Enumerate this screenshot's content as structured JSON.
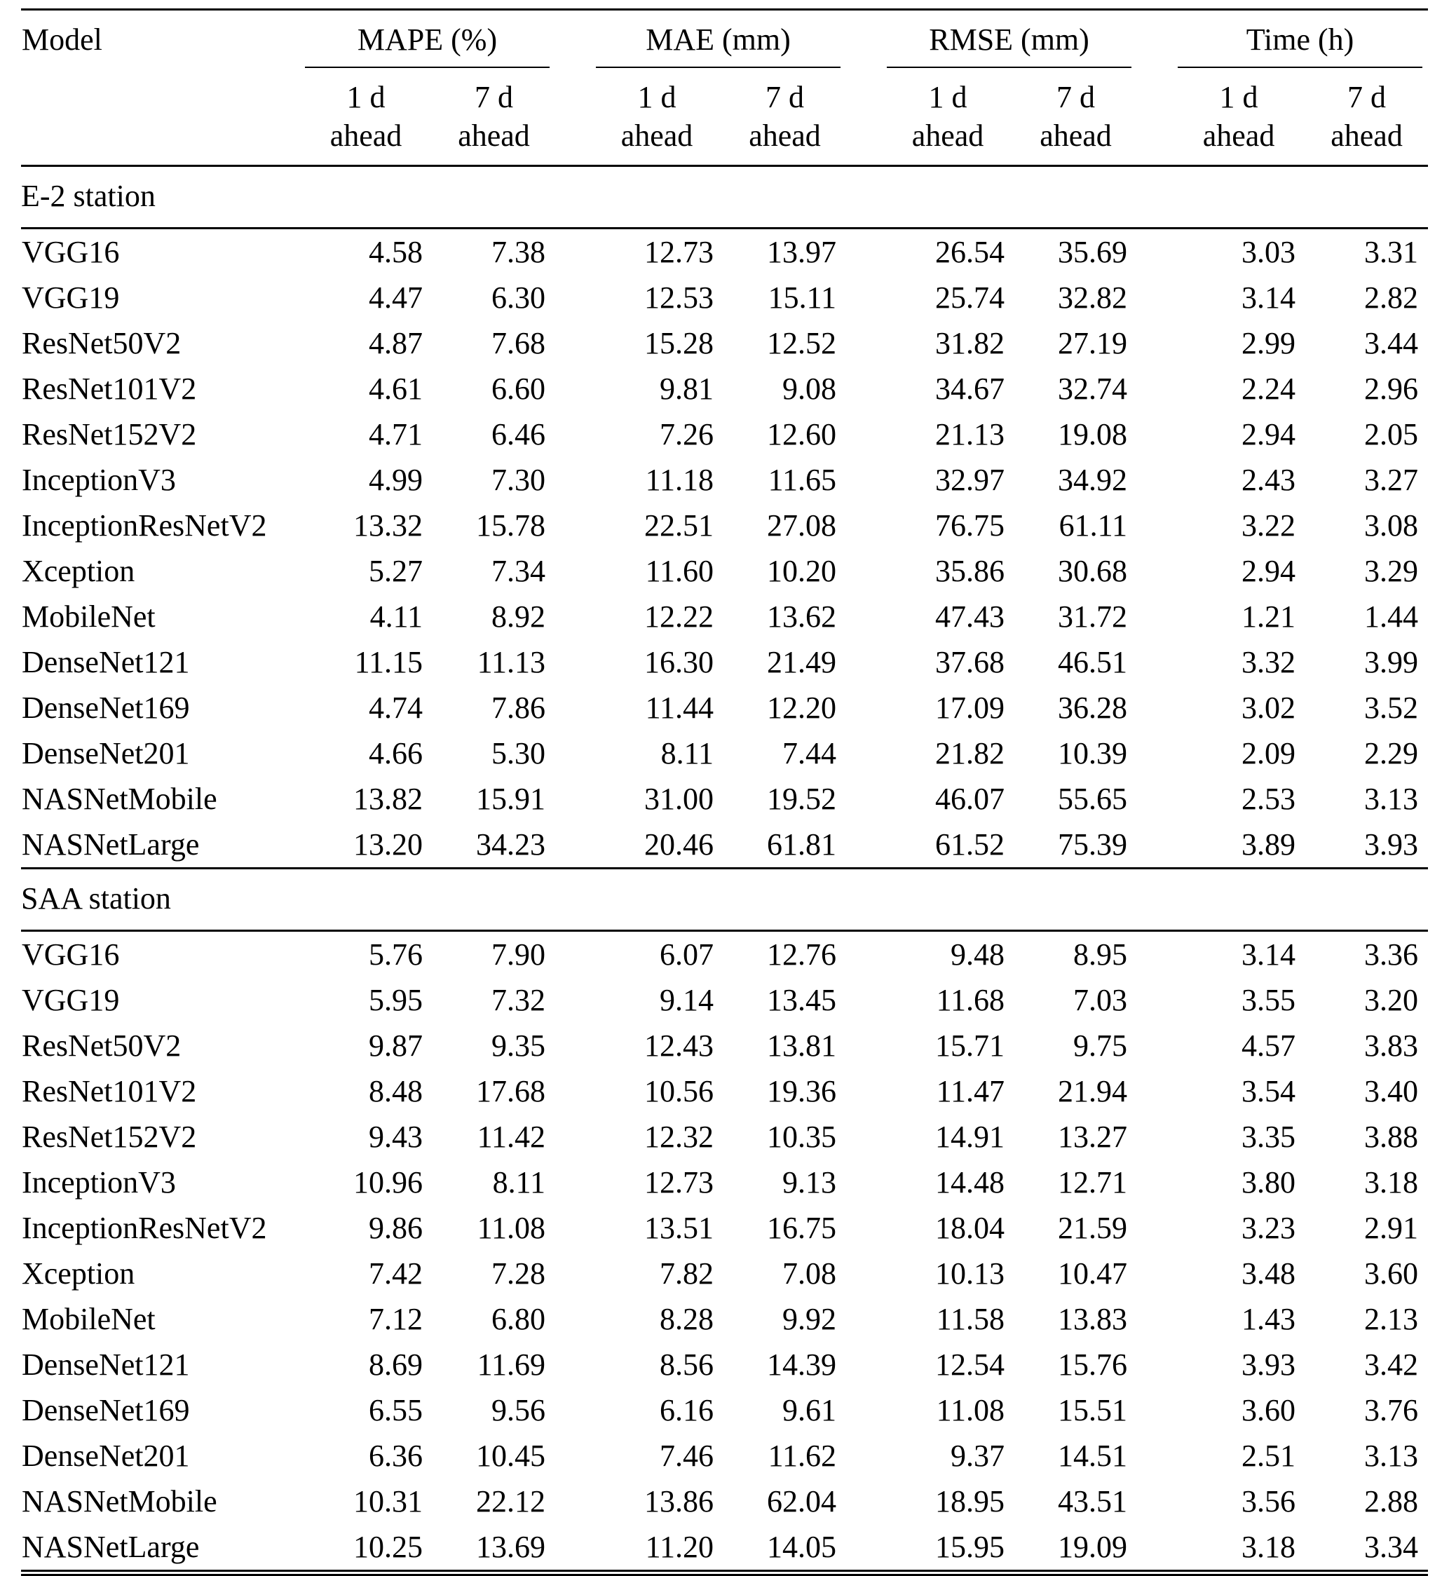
{
  "table": {
    "model_header": "Model",
    "groups": [
      {
        "label": "MAPE (%)"
      },
      {
        "label": "MAE (mm)"
      },
      {
        "label": "RMSE (mm)"
      },
      {
        "label": "Time (h)"
      }
    ],
    "subheader": {
      "one_day_line1": "1 d",
      "seven_day_line1": "7 d",
      "line2": "ahead"
    },
    "sections": [
      {
        "title": "E-2 station",
        "rows": [
          {
            "model": "VGG16",
            "values": [
              "4.58",
              "7.38",
              "12.73",
              "13.97",
              "26.54",
              "35.69",
              "3.03",
              "3.31"
            ]
          },
          {
            "model": "VGG19",
            "values": [
              "4.47",
              "6.30",
              "12.53",
              "15.11",
              "25.74",
              "32.82",
              "3.14",
              "2.82"
            ]
          },
          {
            "model": "ResNet50V2",
            "values": [
              "4.87",
              "7.68",
              "15.28",
              "12.52",
              "31.82",
              "27.19",
              "2.99",
              "3.44"
            ]
          },
          {
            "model": "ResNet101V2",
            "values": [
              "4.61",
              "6.60",
              "9.81",
              "9.08",
              "34.67",
              "32.74",
              "2.24",
              "2.96"
            ]
          },
          {
            "model": "ResNet152V2",
            "values": [
              "4.71",
              "6.46",
              "7.26",
              "12.60",
              "21.13",
              "19.08",
              "2.94",
              "2.05"
            ]
          },
          {
            "model": "InceptionV3",
            "values": [
              "4.99",
              "7.30",
              "11.18",
              "11.65",
              "32.97",
              "34.92",
              "2.43",
              "3.27"
            ]
          },
          {
            "model": "InceptionResNetV2",
            "values": [
              "13.32",
              "15.78",
              "22.51",
              "27.08",
              "76.75",
              "61.11",
              "3.22",
              "3.08"
            ]
          },
          {
            "model": "Xception",
            "values": [
              "5.27",
              "7.34",
              "11.60",
              "10.20",
              "35.86",
              "30.68",
              "2.94",
              "3.29"
            ]
          },
          {
            "model": "MobileNet",
            "values": [
              "4.11",
              "8.92",
              "12.22",
              "13.62",
              "47.43",
              "31.72",
              "1.21",
              "1.44"
            ]
          },
          {
            "model": "DenseNet121",
            "values": [
              "11.15",
              "11.13",
              "16.30",
              "21.49",
              "37.68",
              "46.51",
              "3.32",
              "3.99"
            ]
          },
          {
            "model": "DenseNet169",
            "values": [
              "4.74",
              "7.86",
              "11.44",
              "12.20",
              "17.09",
              "36.28",
              "3.02",
              "3.52"
            ]
          },
          {
            "model": "DenseNet201",
            "values": [
              "4.66",
              "5.30",
              "8.11",
              "7.44",
              "21.82",
              "10.39",
              "2.09",
              "2.29"
            ]
          },
          {
            "model": "NASNetMobile",
            "values": [
              "13.82",
              "15.91",
              "31.00",
              "19.52",
              "46.07",
              "55.65",
              "2.53",
              "3.13"
            ]
          },
          {
            "model": "NASNetLarge",
            "values": [
              "13.20",
              "34.23",
              "20.46",
              "61.81",
              "61.52",
              "75.39",
              "3.89",
              "3.93"
            ]
          }
        ]
      },
      {
        "title": "SAA station",
        "rows": [
          {
            "model": "VGG16",
            "values": [
              "5.76",
              "7.90",
              "6.07",
              "12.76",
              "9.48",
              "8.95",
              "3.14",
              "3.36"
            ]
          },
          {
            "model": "VGG19",
            "values": [
              "5.95",
              "7.32",
              "9.14",
              "13.45",
              "11.68",
              "7.03",
              "3.55",
              "3.20"
            ]
          },
          {
            "model": "ResNet50V2",
            "values": [
              "9.87",
              "9.35",
              "12.43",
              "13.81",
              "15.71",
              "9.75",
              "4.57",
              "3.83"
            ]
          },
          {
            "model": "ResNet101V2",
            "values": [
              "8.48",
              "17.68",
              "10.56",
              "19.36",
              "11.47",
              "21.94",
              "3.54",
              "3.40"
            ]
          },
          {
            "model": "ResNet152V2",
            "values": [
              "9.43",
              "11.42",
              "12.32",
              "10.35",
              "14.91",
              "13.27",
              "3.35",
              "3.88"
            ]
          },
          {
            "model": "InceptionV3",
            "values": [
              "10.96",
              "8.11",
              "12.73",
              "9.13",
              "14.48",
              "12.71",
              "3.80",
              "3.18"
            ]
          },
          {
            "model": "InceptionResNetV2",
            "values": [
              "9.86",
              "11.08",
              "13.51",
              "16.75",
              "18.04",
              "21.59",
              "3.23",
              "2.91"
            ]
          },
          {
            "model": "Xception",
            "values": [
              "7.42",
              "7.28",
              "7.82",
              "7.08",
              "10.13",
              "10.47",
              "3.48",
              "3.60"
            ]
          },
          {
            "model": "MobileNet",
            "values": [
              "7.12",
              "6.80",
              "8.28",
              "9.92",
              "11.58",
              "13.83",
              "1.43",
              "2.13"
            ]
          },
          {
            "model": "DenseNet121",
            "values": [
              "8.69",
              "11.69",
              "8.56",
              "14.39",
              "12.54",
              "15.76",
              "3.93",
              "3.42"
            ]
          },
          {
            "model": "DenseNet169",
            "values": [
              "6.55",
              "9.56",
              "6.16",
              "9.61",
              "11.08",
              "15.51",
              "3.60",
              "3.76"
            ]
          },
          {
            "model": "DenseNet201",
            "values": [
              "6.36",
              "10.45",
              "7.46",
              "11.62",
              "9.37",
              "14.51",
              "2.51",
              "3.13"
            ]
          },
          {
            "model": "NASNetMobile",
            "values": [
              "10.31",
              "22.12",
              "13.86",
              "62.04",
              "18.95",
              "43.51",
              "3.56",
              "2.88"
            ]
          },
          {
            "model": "NASNetLarge",
            "values": [
              "10.25",
              "13.69",
              "11.20",
              "14.05",
              "15.95",
              "19.09",
              "3.18",
              "3.34"
            ]
          }
        ]
      }
    ]
  }
}
